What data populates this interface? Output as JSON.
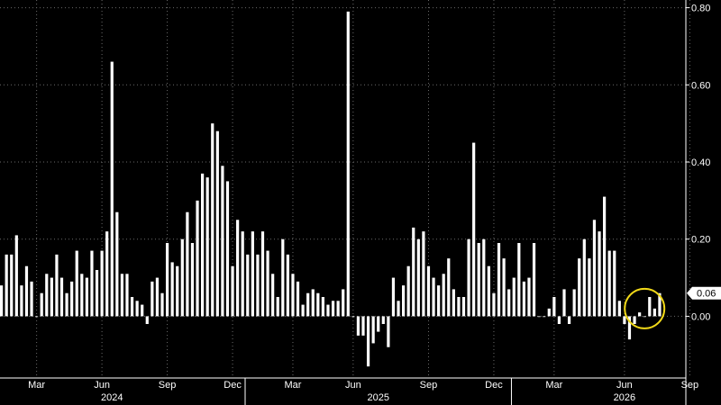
{
  "chart_data": {
    "type": "bar",
    "title": "",
    "xlabel": "",
    "ylabel": "",
    "ylim": [
      -0.16,
      0.82
    ],
    "y_ticks": [
      "0.80",
      "0.60",
      "0.40",
      "0.20",
      "0.00"
    ],
    "y_tick_values": [
      0.8,
      0.6,
      0.4,
      0.2,
      0.0
    ],
    "grid": true,
    "axis_side": "right",
    "x_month_labels": [
      {
        "label": "Mar",
        "bar_index": 7
      },
      {
        "label": "Jun",
        "bar_index": 20
      },
      {
        "label": "Sep",
        "bar_index": 33
      },
      {
        "label": "Dec",
        "bar_index": 46
      },
      {
        "label": "Mar",
        "bar_index": 58
      },
      {
        "label": "Jun",
        "bar_index": 70
      },
      {
        "label": "Sep",
        "bar_index": 85
      },
      {
        "label": "Dec",
        "bar_index": 98
      },
      {
        "label": "Mar",
        "bar_index": 110
      },
      {
        "label": "Jun",
        "bar_index": 124
      },
      {
        "label": "Sep",
        "bar_index": 137
      }
    ],
    "x_year_labels": [
      {
        "label": "2024",
        "bar_index": 22
      },
      {
        "label": "2025",
        "bar_index": 75
      },
      {
        "label": "2026",
        "bar_index": 124
      }
    ],
    "year_separators_after_bar": [
      48,
      101
    ],
    "values": [
      0.08,
      0.16,
      0.16,
      0.21,
      0.08,
      0.13,
      0.09,
      0.0,
      0.06,
      0.11,
      0.1,
      0.16,
      0.1,
      0.06,
      0.09,
      0.17,
      0.11,
      0.1,
      0.17,
      0.12,
      0.17,
      0.22,
      0.66,
      0.27,
      0.11,
      0.11,
      0.05,
      0.04,
      0.03,
      -0.02,
      0.09,
      0.1,
      0.06,
      0.19,
      0.14,
      0.13,
      0.2,
      0.27,
      0.19,
      0.3,
      0.37,
      0.36,
      0.5,
      0.48,
      0.39,
      0.35,
      0.13,
      0.25,
      0.22,
      0.16,
      0.22,
      0.16,
      0.22,
      0.17,
      0.11,
      0.05,
      0.2,
      0.16,
      0.11,
      0.09,
      0.03,
      0.06,
      0.07,
      0.06,
      0.05,
      0.03,
      0.04,
      0.04,
      0.07,
      0.79,
      0.0,
      -0.05,
      -0.05,
      -0.13,
      -0.07,
      -0.04,
      -0.02,
      -0.08,
      0.1,
      0.04,
      0.08,
      0.13,
      0.23,
      0.2,
      0.22,
      0.13,
      0.1,
      0.08,
      0.11,
      0.15,
      0.07,
      0.05,
      0.05,
      0.2,
      0.45,
      0.19,
      0.2,
      0.13,
      0.06,
      0.19,
      0.15,
      0.07,
      0.1,
      0.19,
      0.09,
      0.1,
      0.19,
      0.0,
      0.0,
      0.02,
      0.05,
      -0.02,
      0.07,
      -0.02,
      0.07,
      0.15,
      0.2,
      0.15,
      0.25,
      0.22,
      0.31,
      0.17,
      0.17,
      0.04,
      -0.02,
      -0.06,
      -0.02,
      0.01,
      0.0,
      0.05,
      0.02,
      0.06
    ],
    "last_value_label": "0.06"
  }
}
